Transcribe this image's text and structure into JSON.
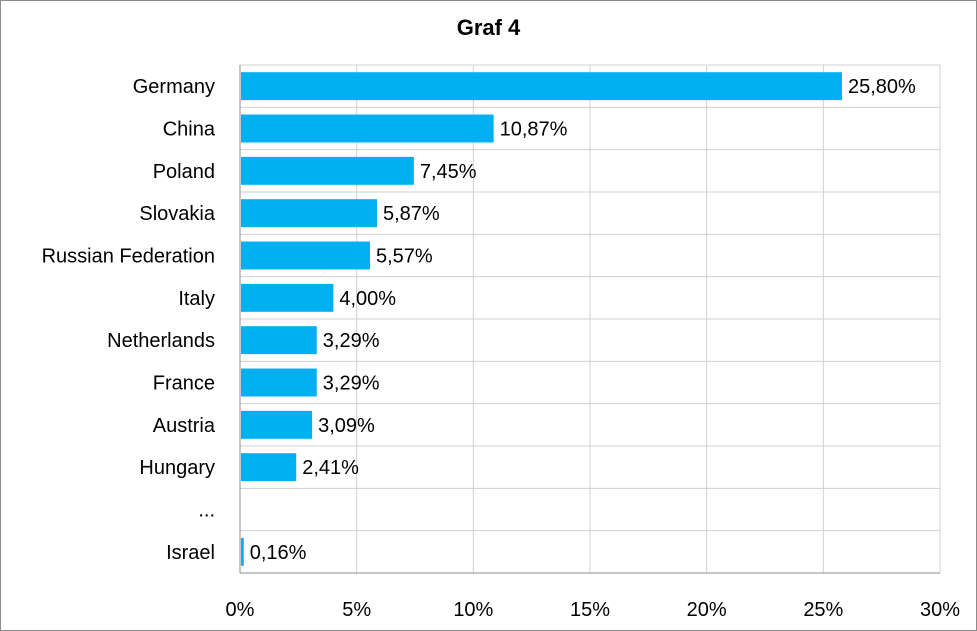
{
  "chart_data": {
    "type": "bar",
    "orientation": "horizontal",
    "title": "Graf 4",
    "xlabel": "",
    "ylabel": "",
    "categories": [
      "Germany",
      "China",
      "Poland",
      "Slovakia",
      "Russian Federation",
      "Italy",
      "Netherlands",
      "France",
      "Austria",
      "Hungary",
      "...",
      "Israel"
    ],
    "values": [
      25.8,
      10.87,
      7.45,
      5.87,
      5.57,
      4.0,
      3.29,
      3.29,
      3.09,
      2.41,
      null,
      0.16
    ],
    "data_labels": [
      "25,80%",
      "10,87%",
      "7,45%",
      "5,87%",
      "5,57%",
      "4,00%",
      "3,29%",
      "3,29%",
      "3,09%",
      "2,41%",
      "",
      "0,16%"
    ],
    "xlim": [
      0,
      30
    ],
    "x_ticks": [
      0,
      5,
      10,
      15,
      20,
      25,
      30
    ],
    "x_tick_labels": [
      "0%",
      "5%",
      "10%",
      "15%",
      "20%",
      "25%",
      "30%"
    ],
    "grid": true,
    "legend": "none",
    "bar_color": "#00b0f0",
    "grid_color": "#d0d0d0"
  }
}
